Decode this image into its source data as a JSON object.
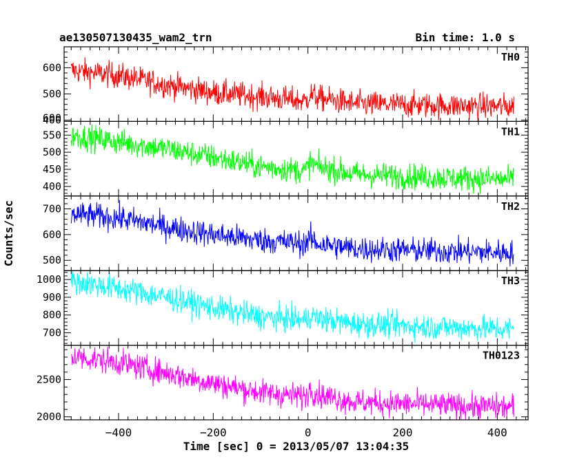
{
  "header": {
    "obs_id": "ae130507130435_wam2_trn",
    "bin_time": "Bin time: 1.0 s"
  },
  "chart_data": {
    "type": "line",
    "xlabel": "Time [sec] 0 = 2013/05/07 13:04:35",
    "ylabel": "Counts/sec",
    "xlim": [
      -515,
      465
    ],
    "x_ticks": [
      -400,
      -200,
      0,
      200,
      400
    ],
    "x_range": [
      -500,
      435
    ],
    "bin_time_s": 1.0,
    "panels": [
      {
        "label": "TH0",
        "color": "#ff0000",
        "ylim": [
          395,
          680
        ],
        "yticks": [
          400,
          500,
          600
        ],
        "trend": [
          [
            -500,
            590
          ],
          [
            -400,
            570
          ],
          [
            -300,
            535
          ],
          [
            -200,
            505
          ],
          [
            -100,
            490
          ],
          [
            -5,
            472
          ],
          [
            5,
            500
          ],
          [
            20,
            485
          ],
          [
            100,
            462
          ],
          [
            300,
            455
          ],
          [
            435,
            452
          ]
        ]
      },
      {
        "label": "TH1",
        "color": "#00ff00",
        "ylim": [
          372,
          590
        ],
        "yticks": [
          400,
          450,
          500,
          550,
          600
        ],
        "trend": [
          [
            -500,
            550
          ],
          [
            -400,
            530
          ],
          [
            -300,
            510
          ],
          [
            -200,
            485
          ],
          [
            -100,
            458
          ],
          [
            -5,
            445
          ],
          [
            5,
            470
          ],
          [
            20,
            458
          ],
          [
            100,
            435
          ],
          [
            300,
            425
          ],
          [
            435,
            420
          ]
        ]
      },
      {
        "label": "TH2",
        "color": "#0000ff",
        "ylim": [
          460,
          750
        ],
        "yticks": [
          500,
          600,
          700
        ],
        "trend": [
          [
            -500,
            680
          ],
          [
            -400,
            665
          ],
          [
            -300,
            630
          ],
          [
            -200,
            600
          ],
          [
            -100,
            578
          ],
          [
            -5,
            565
          ],
          [
            5,
            585
          ],
          [
            20,
            565
          ],
          [
            100,
            545
          ],
          [
            300,
            535
          ],
          [
            435,
            530
          ]
        ]
      },
      {
        "label": "TH3",
        "color": "#00ffff",
        "ylim": [
          630,
          1050
        ],
        "yticks": [
          700,
          800,
          900,
          1000
        ],
        "trend": [
          [
            -500,
            990
          ],
          [
            -400,
            950
          ],
          [
            -300,
            900
          ],
          [
            -200,
            840
          ],
          [
            -100,
            790
          ],
          [
            -5,
            770
          ],
          [
            5,
            800
          ],
          [
            20,
            780
          ],
          [
            100,
            750
          ],
          [
            300,
            730
          ],
          [
            435,
            720
          ]
        ]
      },
      {
        "label": "TH0123",
        "color": "#ff00ff",
        "ylim": [
          1960,
          2960
        ],
        "yticks": [
          2000,
          2500
        ],
        "trend": [
          [
            -500,
            2810
          ],
          [
            -400,
            2730
          ],
          [
            -300,
            2590
          ],
          [
            -200,
            2450
          ],
          [
            -100,
            2330
          ],
          [
            -5,
            2270
          ],
          [
            5,
            2380
          ],
          [
            20,
            2300
          ],
          [
            100,
            2200
          ],
          [
            300,
            2150
          ],
          [
            435,
            2130
          ]
        ]
      }
    ]
  }
}
